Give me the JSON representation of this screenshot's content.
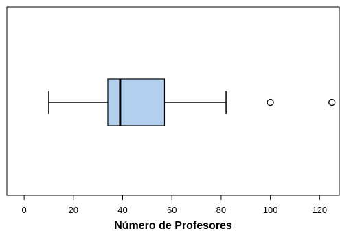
{
  "chart_data": {
    "type": "boxplot",
    "orientation": "horizontal",
    "xlabel": "Número de Profesores",
    "xlim": [
      -7,
      128
    ],
    "xticks": [
      0,
      20,
      40,
      60,
      80,
      100,
      120
    ],
    "xtick_labels": [
      "0",
      "20",
      "40",
      "60",
      "80",
      "100",
      "120"
    ],
    "box": {
      "whisker_low": 10,
      "q1": 34,
      "median": 39,
      "q3": 57,
      "whisker_high": 82,
      "outliers": [
        100,
        125
      ]
    },
    "grid": false,
    "colors": {
      "box_fill": "#b3d1ef",
      "stroke": "#000000"
    }
  }
}
